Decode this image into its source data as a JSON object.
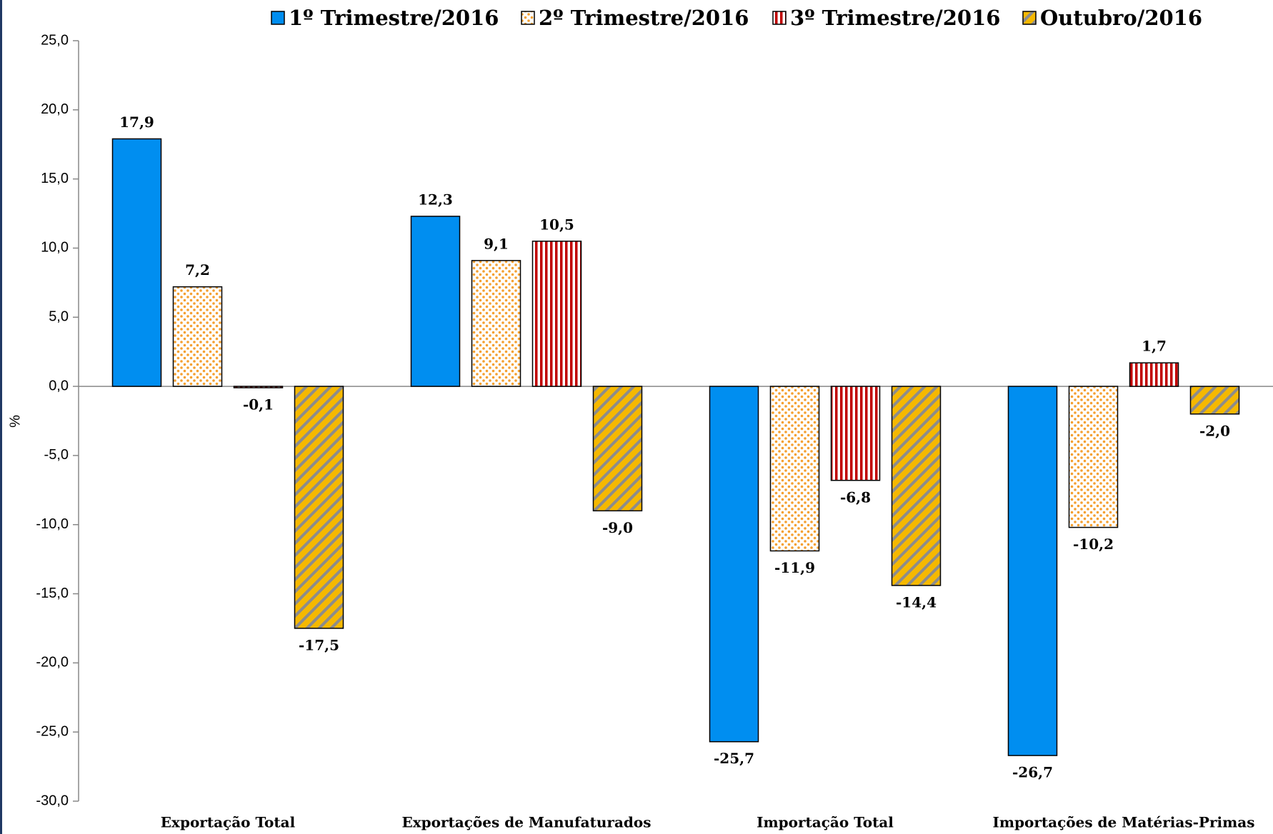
{
  "chart_data": {
    "type": "bar",
    "categories": [
      "Exportação Total",
      "Exportações de Manufaturados",
      "Importação Total",
      "Importações de Matérias-Primas"
    ],
    "series": [
      {
        "name": "1º Trimestre/2016",
        "color": "#008ef0",
        "pattern": "solid",
        "values": [
          17.9,
          12.3,
          -25.7,
          -26.7
        ],
        "value_labels": [
          "17,9",
          "12,3",
          "-25,7",
          "-26,7"
        ]
      },
      {
        "name": "2º Trimestre/2016",
        "color": "#f5a030",
        "pattern": "dots",
        "values": [
          7.2,
          9.1,
          -11.9,
          -10.2
        ],
        "value_labels": [
          "7,2",
          "9,1",
          "-11,9",
          "-10,2"
        ]
      },
      {
        "name": "3º Trimestre/2016",
        "color": "#c00000",
        "pattern": "vertical-stripes",
        "values": [
          -0.1,
          10.5,
          -6.8,
          1.7
        ],
        "value_labels": [
          "-0,1",
          "10,5",
          "-6,8",
          "1,7"
        ]
      },
      {
        "name": "Outubro/2016",
        "color": "#f5b800",
        "pattern": "diagonal-stripes",
        "values": [
          -17.5,
          -9.0,
          -14.4,
          -2.0
        ],
        "value_labels": [
          "-17,5",
          "-9,0",
          "-14,4",
          "-2,0"
        ]
      }
    ],
    "y_label": "%",
    "ylim": [
      -30,
      25
    ],
    "yticks": [
      {
        "value": -30,
        "label": "-30,0"
      },
      {
        "value": -25,
        "label": "-25,0"
      },
      {
        "value": -20,
        "label": "-20,0"
      },
      {
        "value": -15,
        "label": "-15,0"
      },
      {
        "value": -10,
        "label": "-10,0"
      },
      {
        "value": -5,
        "label": "-5,0"
      },
      {
        "value": 0,
        "label": "0,0"
      },
      {
        "value": 5,
        "label": "5,0"
      },
      {
        "value": 10,
        "label": "10,0"
      },
      {
        "value": 15,
        "label": "15,0"
      },
      {
        "value": 20,
        "label": "20,0"
      },
      {
        "value": 25,
        "label": "25,0"
      }
    ],
    "legend": "top"
  }
}
